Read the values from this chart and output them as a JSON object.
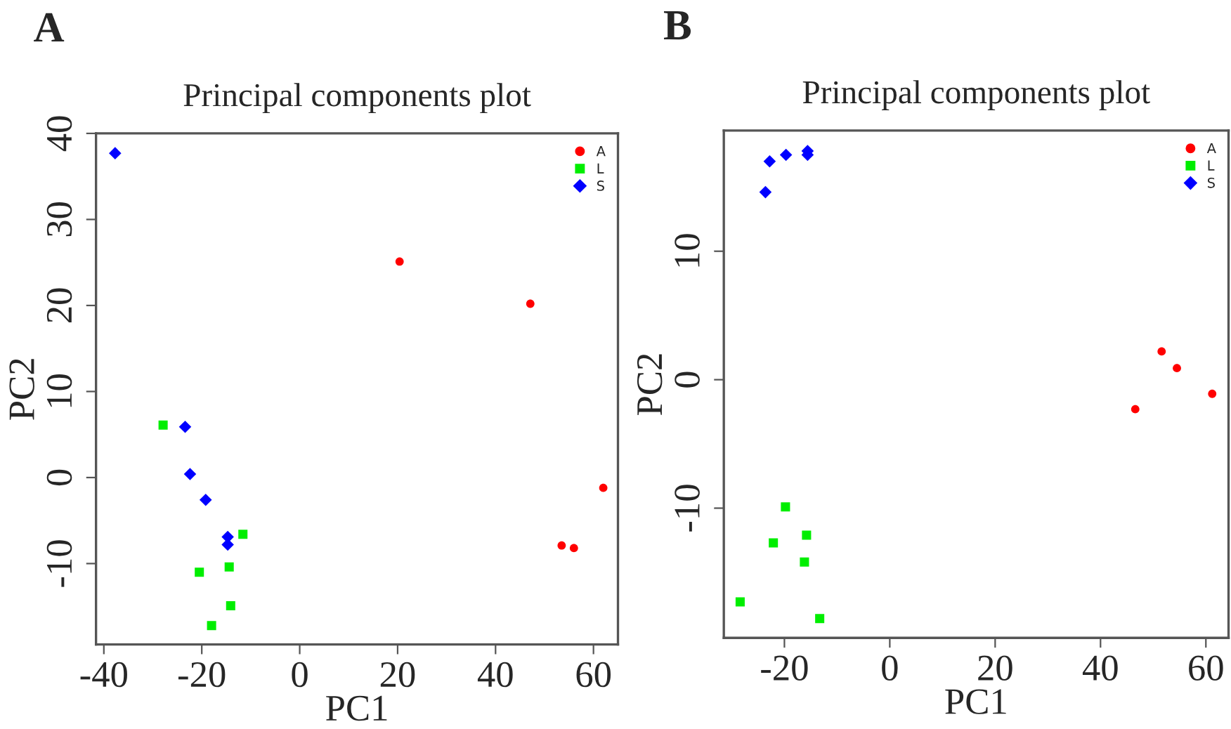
{
  "chart_data": [
    {
      "type": "scatter",
      "title": "Principal components plot",
      "xlabel": "PC1",
      "ylabel": "PC2",
      "annotations": [
        "A"
      ],
      "xlim": [
        -41.6,
        65
      ],
      "ylim": [
        -19.4,
        40
      ],
      "xticks": [
        -40,
        -20,
        0,
        20,
        40,
        60
      ],
      "yticks": [
        -10,
        0,
        10,
        20,
        30,
        40
      ],
      "grid": false,
      "legend": "top right",
      "series": [
        {
          "name": "A",
          "color": "#ff0000",
          "marker": "circle",
          "x": [
            20.4,
            47.1,
            62.0,
            53.5,
            56.0
          ],
          "values": [
            25.1,
            20.2,
            -1.2,
            -7.9,
            -8.2
          ]
        },
        {
          "name": "L",
          "color": "#00ee00",
          "marker": "square",
          "x": [
            -27.9,
            -11.6,
            -14.4,
            -20.5,
            -14.1,
            -18.0
          ],
          "values": [
            6.1,
            -6.6,
            -10.4,
            -11.0,
            -14.9,
            -17.2
          ]
        },
        {
          "name": "S",
          "color": "#0000ff",
          "marker": "diamond",
          "x": [
            -37.7,
            -23.4,
            -22.4,
            -19.2,
            -14.7,
            -14.7
          ],
          "values": [
            37.7,
            5.9,
            0.4,
            -2.6,
            -6.9,
            -7.8
          ]
        }
      ]
    },
    {
      "type": "scatter",
      "title": "Principal components plot",
      "xlabel": "PC1",
      "ylabel": "PC2",
      "annotations": [
        "B"
      ],
      "xlim": [
        -31.5,
        64.3
      ],
      "ylim": [
        -20.1,
        19.4
      ],
      "xticks": [
        -20,
        0,
        20,
        40,
        60
      ],
      "yticks": [
        -10,
        0,
        10
      ],
      "grid": false,
      "legend": "top right",
      "series": [
        {
          "name": "A",
          "color": "#ff0000",
          "marker": "circle",
          "x": [
            51.6,
            54.5,
            61.2,
            46.6
          ],
          "values": [
            2.2,
            0.9,
            -1.1,
            -2.3
          ]
        },
        {
          "name": "L",
          "color": "#00ee00",
          "marker": "square",
          "x": [
            -19.8,
            -22.1,
            -15.8,
            -16.2,
            -28.4,
            -13.3
          ],
          "values": [
            -9.9,
            -12.7,
            -12.1,
            -14.2,
            -17.3,
            -18.6
          ]
        },
        {
          "name": "S",
          "color": "#0000ff",
          "marker": "diamond",
          "x": [
            -22.8,
            -19.7,
            -15.6,
            -15.6,
            -23.6
          ],
          "values": [
            17.0,
            17.5,
            17.8,
            17.5,
            14.6
          ]
        }
      ]
    }
  ]
}
